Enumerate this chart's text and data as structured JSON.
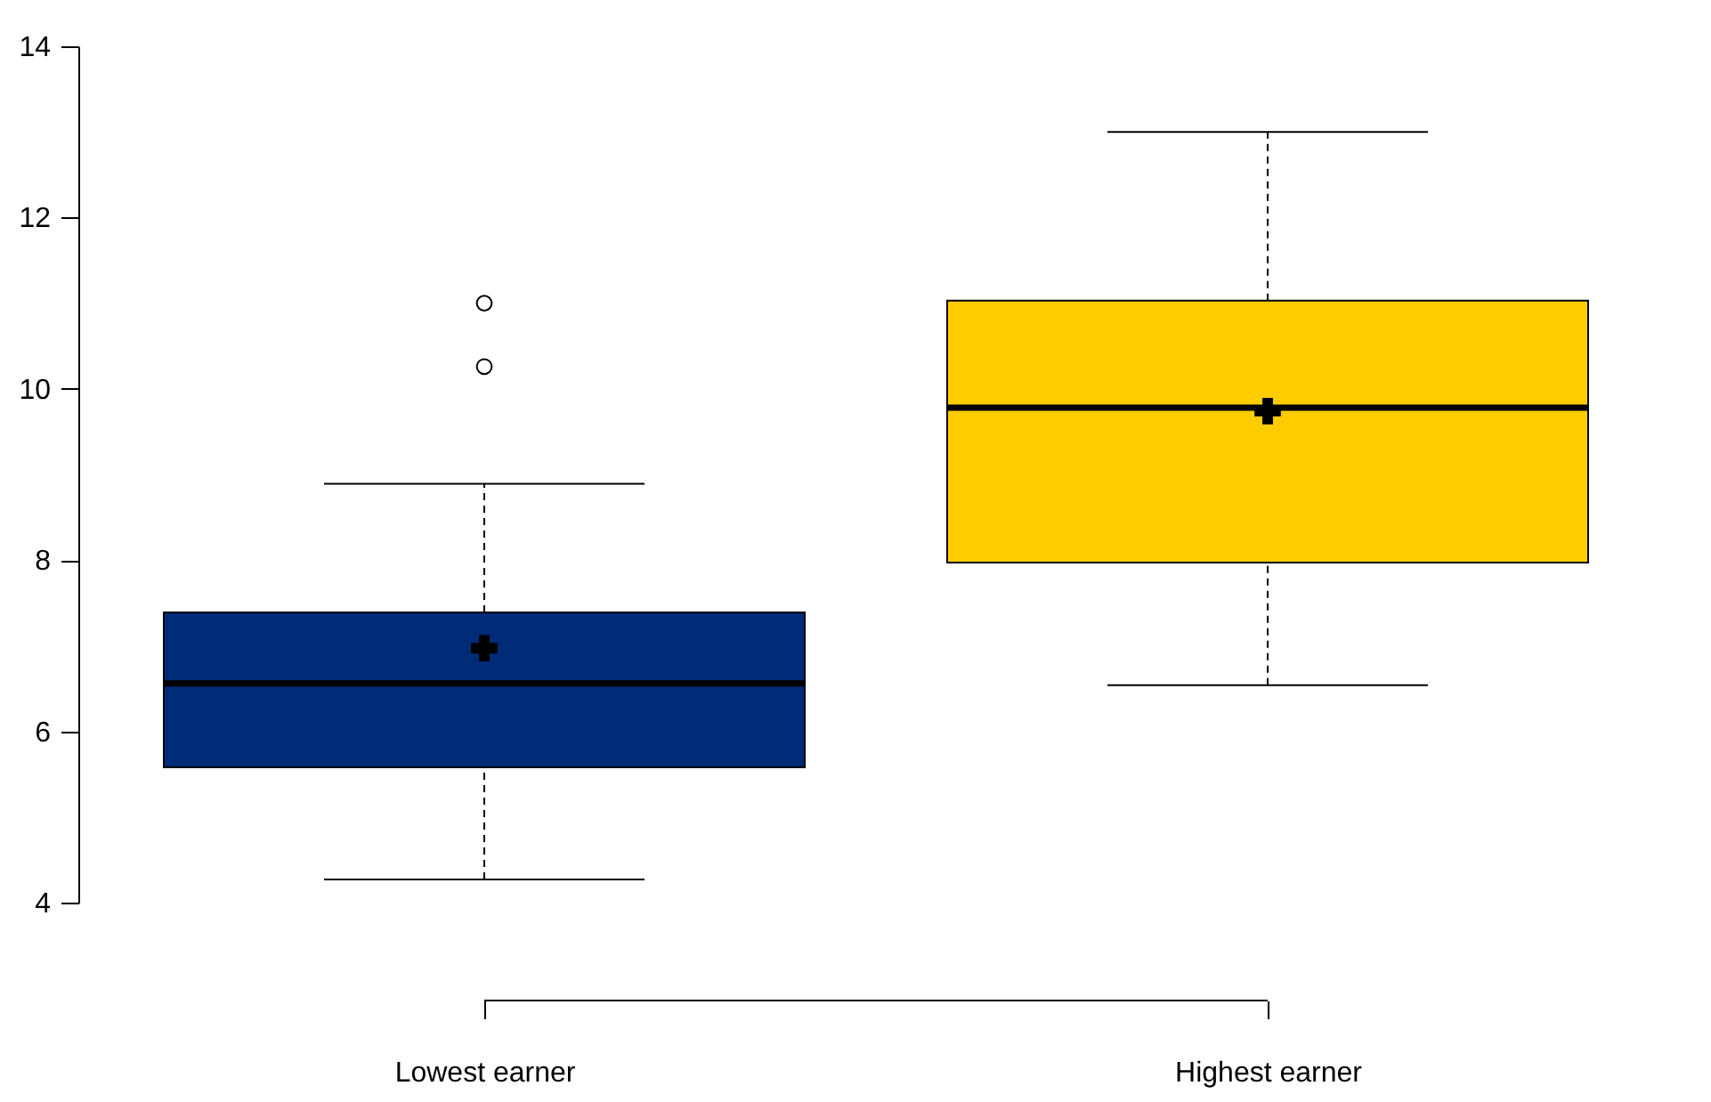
{
  "chart_data": {
    "type": "box",
    "categories": [
      "Lowest earner",
      "Highest earner"
    ],
    "colors": [
      "#012a77",
      "#ffcc00"
    ],
    "boxes": [
      {
        "low": 4.27,
        "q1": 5.58,
        "median": 6.56,
        "q3": 7.39,
        "high": 8.89,
        "mean": 6.97,
        "outliers": [
          10.26,
          11.0
        ]
      },
      {
        "low": 6.54,
        "q1": 7.97,
        "median": 9.78,
        "q3": 11.03,
        "high": 13.0,
        "mean": 9.74
      }
    ],
    "ylim": [
      4,
      14
    ],
    "yticks": [
      4,
      6,
      8,
      10,
      12,
      14
    ],
    "grid": false
  }
}
